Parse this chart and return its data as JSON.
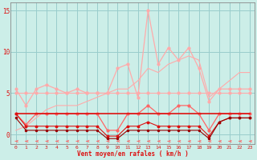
{
  "x": [
    0,
    1,
    2,
    3,
    4,
    5,
    6,
    7,
    8,
    9,
    10,
    11,
    12,
    13,
    14,
    15,
    16,
    17,
    18,
    19,
    20,
    21,
    22,
    23
  ],
  "line1_rafales": [
    5.5,
    3.5,
    5.5,
    6.0,
    5.5,
    5.0,
    5.5,
    5.0,
    5.0,
    5.0,
    8.0,
    8.5,
    4.5,
    15.0,
    8.5,
    10.5,
    9.0,
    10.5,
    8.0,
    4.0,
    5.5,
    5.5,
    5.5,
    5.5
  ],
  "line2_ramp": [
    0.5,
    1.0,
    2.0,
    3.0,
    3.5,
    3.5,
    3.5,
    4.0,
    4.5,
    5.0,
    5.5,
    5.5,
    6.5,
    8.0,
    7.5,
    8.5,
    9.0,
    9.5,
    9.0,
    4.5,
    5.5,
    6.5,
    7.5,
    7.5
  ],
  "line3_flat5": [
    5.0,
    5.0,
    5.0,
    5.0,
    5.0,
    5.0,
    5.0,
    5.0,
    5.0,
    5.0,
    5.0,
    5.0,
    5.0,
    5.0,
    5.0,
    5.0,
    5.0,
    5.0,
    5.0,
    5.0,
    5.0,
    5.0,
    5.0,
    5.0
  ],
  "line4_mid": [
    2.5,
    1.2,
    2.5,
    2.5,
    2.5,
    2.5,
    2.5,
    2.5,
    2.5,
    0.5,
    0.5,
    2.5,
    2.5,
    3.5,
    2.5,
    2.5,
    3.5,
    3.5,
    2.5,
    0.5,
    2.5,
    2.5,
    2.5,
    2.5
  ],
  "line5_flat25": [
    2.5,
    2.5,
    2.5,
    2.5,
    2.5,
    2.5,
    2.5,
    2.5,
    2.5,
    2.5,
    2.5,
    2.5,
    2.5,
    2.5,
    2.5,
    2.5,
    2.5,
    2.5,
    2.5,
    2.5,
    2.5,
    2.5,
    2.5,
    2.5
  ],
  "line6_low": [
    2.5,
    1.0,
    1.0,
    1.0,
    1.0,
    1.0,
    1.0,
    1.0,
    1.0,
    -0.2,
    -0.2,
    1.0,
    1.0,
    1.5,
    1.0,
    1.0,
    1.0,
    1.0,
    1.0,
    -0.2,
    1.5,
    2.0,
    2.0,
    2.0
  ],
  "line7_verydark": [
    2.0,
    0.5,
    0.5,
    0.5,
    0.5,
    0.5,
    0.5,
    0.5,
    0.5,
    -0.5,
    -0.5,
    0.5,
    0.5,
    0.5,
    0.5,
    0.5,
    0.5,
    0.5,
    0.5,
    -0.5,
    1.5,
    2.0,
    2.0,
    2.0
  ],
  "xlabel": "Vent moyen/en rafales ( km/h )",
  "ylim": [
    -1.2,
    16
  ],
  "yticks": [
    0,
    5,
    10,
    15
  ],
  "xticks": [
    0,
    1,
    2,
    3,
    4,
    5,
    6,
    7,
    8,
    9,
    10,
    11,
    12,
    13,
    14,
    15,
    16,
    17,
    18,
    19,
    20,
    21,
    22,
    23
  ],
  "bg_color": "#cceee8",
  "grid_color": "#99cccc",
  "c_light": "#ffaaaa",
  "c_mid": "#ff6666",
  "c_dark": "#dd1111",
  "c_vdark": "#990000"
}
